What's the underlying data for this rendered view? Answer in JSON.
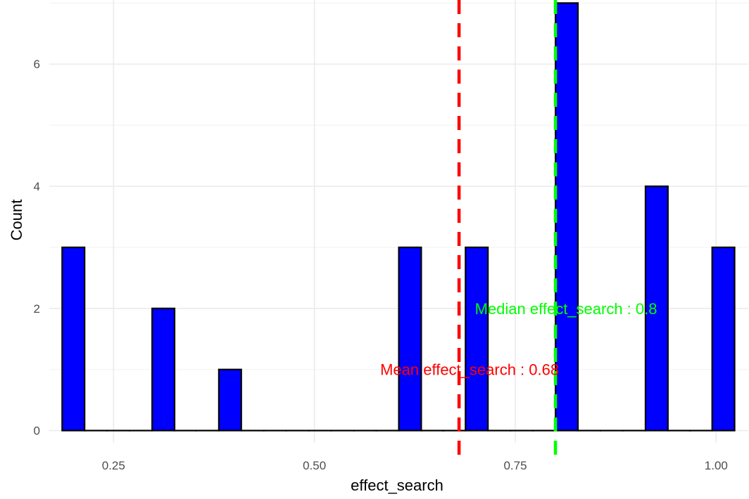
{
  "chart_data": {
    "type": "bar",
    "title": "",
    "xlabel": "effect_search",
    "ylabel": "Count",
    "xlim": [
      0.17,
      1.04
    ],
    "ylim": [
      -0.2,
      7.05
    ],
    "x_ticks": [
      0.25,
      0.5,
      0.75,
      1.0
    ],
    "x_tick_labels": [
      "0.25",
      "0.50",
      "0.75",
      "1.00"
    ],
    "y_ticks": [
      0,
      2,
      4,
      6
    ],
    "y_tick_labels": [
      "0",
      "2",
      "4",
      "6"
    ],
    "y_minor_ticks": [
      1,
      3,
      5,
      7
    ],
    "grid": true,
    "bin_width": 0.0279,
    "bar_fill": "#0000ff",
    "bar_outline": "#000000",
    "bins_x": [
      0.2,
      0.228,
      0.256,
      0.284,
      0.312,
      0.339,
      0.367,
      0.395,
      0.423,
      0.451,
      0.479,
      0.507,
      0.535,
      0.563,
      0.591,
      0.619,
      0.647,
      0.674,
      0.702,
      0.73,
      0.758,
      0.786,
      0.814,
      0.842,
      0.87,
      0.898,
      0.926,
      0.954,
      0.981,
      1.009
    ],
    "counts": [
      3,
      0,
      0,
      0,
      2,
      0,
      0,
      1,
      0,
      0,
      0,
      0,
      0,
      0,
      0,
      3,
      0,
      0,
      3,
      0,
      0,
      0,
      7,
      0,
      0,
      0,
      4,
      0,
      0,
      3
    ],
    "reference_lines": [
      {
        "name": "mean",
        "x": 0.68,
        "color": "#ff0000",
        "style": "dashed",
        "label": "Mean effect_search : 0.68",
        "label_y": 1
      },
      {
        "name": "median",
        "x": 0.8,
        "color": "#00ff00",
        "style": "dashed",
        "label": "Median effect_search : 0.8",
        "label_y": 2
      }
    ]
  }
}
